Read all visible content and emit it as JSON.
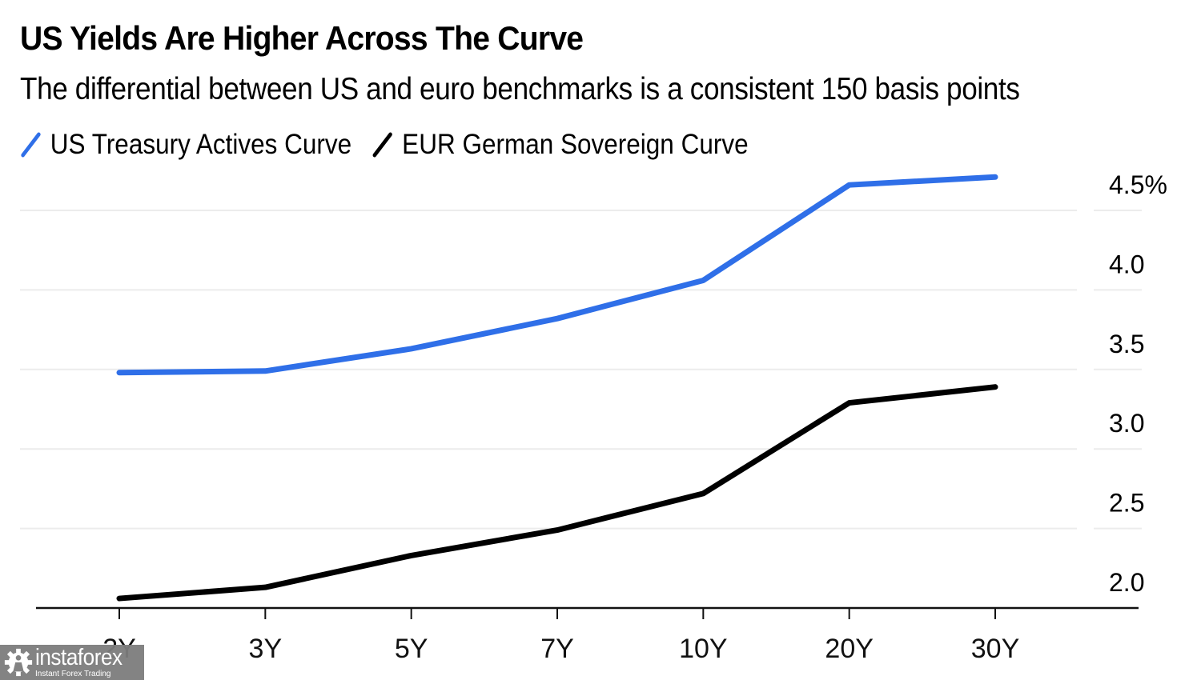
{
  "chart_data": {
    "type": "line",
    "title": "US Yields Are Higher Across The Curve",
    "subtitle": "The differential between US and euro benchmarks is a consistent 150 basis points",
    "xlabel": "",
    "ylabel": "",
    "categories": [
      "2Y",
      "3Y",
      "5Y",
      "7Y",
      "10Y",
      "20Y",
      "30Y"
    ],
    "series": [
      {
        "name": "US Treasury Actives Curve",
        "color": "#2f6fe8",
        "values": [
          3.48,
          3.49,
          3.63,
          3.82,
          4.06,
          4.66,
          4.71
        ]
      },
      {
        "name": "EUR German Sovereign Curve",
        "color": "#000000",
        "values": [
          2.06,
          2.13,
          2.33,
          2.49,
          2.72,
          3.29,
          3.39
        ]
      }
    ],
    "ylim": [
      2.0,
      4.5
    ],
    "yticks": [
      2.0,
      2.5,
      3.0,
      3.5,
      4.0,
      4.5
    ],
    "ytick_labels": [
      "2.0",
      "2.5",
      "3.0",
      "3.5",
      "4.0",
      "4.5%"
    ],
    "y_axis_side": "right",
    "grid": true,
    "legend_position": "top-left"
  },
  "watermark": {
    "brand": "instaforex",
    "tagline": "Instant Forex Trading"
  }
}
